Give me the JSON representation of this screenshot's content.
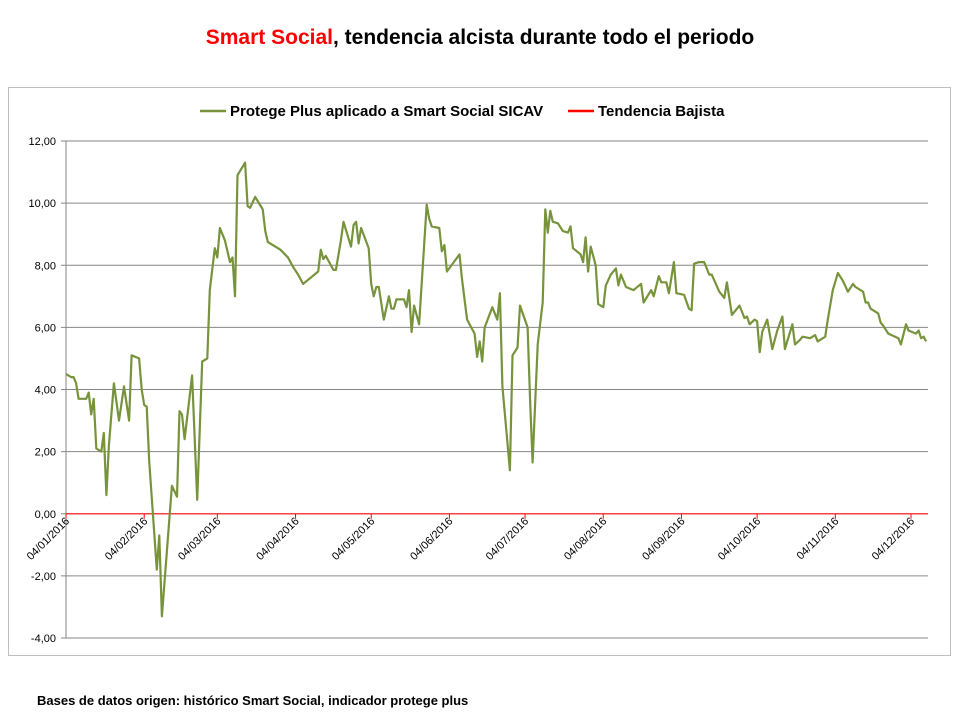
{
  "title": {
    "highlight": "Smart Social",
    "rest": ", tendencia alcista durante todo el periodo"
  },
  "footer": "Bases de datos origen: histórico Smart Social, indicador protege plus",
  "colors": {
    "series": "#77933c",
    "trend": "#ff0000",
    "grid": "#868686",
    "highlight": "#ff0000"
  },
  "chart_data": {
    "type": "line",
    "title": "Smart Social, tendencia alcista durante todo el periodo",
    "xlabel": "",
    "ylabel": "",
    "x_unit": "days since 04/01/2016",
    "ylim": [
      -4,
      12
    ],
    "xlim": [
      0,
      342
    ],
    "grid": true,
    "legend_position": "top",
    "y_ticks": [
      -4,
      -2,
      0,
      2,
      4,
      6,
      8,
      10,
      12
    ],
    "y_tick_labels": [
      "-4,00",
      "-2,00",
      "0,00",
      "2,00",
      "4,00",
      "6,00",
      "8,00",
      "10,00",
      "12,00"
    ],
    "x_ticks": [
      0,
      31,
      60,
      91,
      121,
      152,
      182,
      213,
      244,
      274,
      305,
      335
    ],
    "x_tick_labels": [
      "04/01/2016",
      "04/02/2016",
      "04/03/2016",
      "04/04/2016",
      "04/05/2016",
      "04/06/2016",
      "04/07/2016",
      "04/08/2016",
      "04/09/2016",
      "04/10/2016",
      "04/11/2016",
      "04/12/2016"
    ],
    "series": [
      {
        "name": "Protege Plus aplicado a Smart Social SICAV",
        "color": "#77933c",
        "points": [
          [
            0,
            4.5
          ],
          [
            2,
            4.4
          ],
          [
            3,
            4.4
          ],
          [
            4,
            4.2
          ],
          [
            5,
            3.7
          ],
          [
            8,
            3.7
          ],
          [
            9,
            3.9
          ],
          [
            10,
            3.2
          ],
          [
            11,
            3.7
          ],
          [
            12,
            2.1
          ],
          [
            14,
            2.0
          ],
          [
            15,
            2.6
          ],
          [
            16,
            0.6
          ],
          [
            17,
            2.2
          ],
          [
            19,
            4.2
          ],
          [
            21,
            3.0
          ],
          [
            23,
            4.1
          ],
          [
            25,
            3.0
          ],
          [
            26,
            5.1
          ],
          [
            29,
            5.0
          ],
          [
            30,
            4.0
          ],
          [
            31,
            3.5
          ],
          [
            32,
            3.45
          ],
          [
            33,
            1.7
          ],
          [
            36,
            -1.8
          ],
          [
            37,
            -0.7
          ],
          [
            38,
            -3.3
          ],
          [
            40,
            -1.2
          ],
          [
            42,
            0.9
          ],
          [
            44,
            0.55
          ],
          [
            45,
            3.3
          ],
          [
            46,
            3.2
          ],
          [
            47,
            2.4
          ],
          [
            50,
            4.45
          ],
          [
            52,
            0.45
          ],
          [
            54,
            4.9
          ],
          [
            56,
            5.0
          ],
          [
            57,
            7.2
          ],
          [
            59,
            8.55
          ],
          [
            60,
            8.25
          ],
          [
            61,
            9.2
          ],
          [
            63,
            8.8
          ],
          [
            65,
            8.1
          ],
          [
            66,
            8.25
          ],
          [
            67,
            7.0
          ],
          [
            68,
            10.9
          ],
          [
            71,
            11.3
          ],
          [
            72,
            9.9
          ],
          [
            73,
            9.85
          ],
          [
            75,
            10.2
          ],
          [
            78,
            9.8
          ],
          [
            79,
            9.1
          ],
          [
            80,
            8.75
          ],
          [
            85,
            8.5
          ],
          [
            88,
            8.25
          ],
          [
            90,
            7.95
          ],
          [
            92,
            7.7
          ],
          [
            94,
            7.4
          ],
          [
            97,
            7.6
          ],
          [
            100,
            7.8
          ],
          [
            101,
            8.5
          ],
          [
            102,
            8.2
          ],
          [
            103,
            8.3
          ],
          [
            106,
            7.85
          ],
          [
            107,
            7.85
          ],
          [
            109,
            8.8
          ],
          [
            110,
            9.4
          ],
          [
            113,
            8.6
          ],
          [
            114,
            9.3
          ],
          [
            115,
            9.4
          ],
          [
            116,
            8.7
          ],
          [
            117,
            9.2
          ],
          [
            120,
            8.55
          ],
          [
            121,
            7.4
          ],
          [
            122,
            7.0
          ],
          [
            123,
            7.3
          ],
          [
            124,
            7.3
          ],
          [
            126,
            6.25
          ],
          [
            128,
            7.0
          ],
          [
            129,
            6.6
          ],
          [
            130,
            6.6
          ],
          [
            131,
            6.9
          ],
          [
            134,
            6.9
          ],
          [
            135,
            6.65
          ],
          [
            136,
            7.2
          ],
          [
            137,
            5.85
          ],
          [
            138,
            6.7
          ],
          [
            140,
            6.1
          ],
          [
            143,
            9.95
          ],
          [
            144,
            9.5
          ],
          [
            145,
            9.25
          ],
          [
            148,
            9.2
          ],
          [
            149,
            8.45
          ],
          [
            150,
            8.65
          ],
          [
            151,
            7.8
          ],
          [
            156,
            8.35
          ],
          [
            157,
            7.55
          ],
          [
            159,
            6.25
          ],
          [
            162,
            5.8
          ],
          [
            163,
            5.05
          ],
          [
            164,
            5.55
          ],
          [
            165,
            4.9
          ],
          [
            166,
            6.0
          ],
          [
            169,
            6.65
          ],
          [
            171,
            6.25
          ],
          [
            172,
            7.1
          ],
          [
            173,
            4.1
          ],
          [
            176,
            1.4
          ],
          [
            177,
            5.1
          ],
          [
            179,
            5.35
          ],
          [
            180,
            6.7
          ],
          [
            183,
            6.0
          ],
          [
            184,
            3.65
          ],
          [
            185,
            1.65
          ],
          [
            187,
            5.45
          ],
          [
            189,
            6.8
          ],
          [
            190,
            9.8
          ],
          [
            191,
            9.05
          ],
          [
            192,
            9.75
          ],
          [
            193,
            9.4
          ],
          [
            195,
            9.35
          ],
          [
            197,
            9.1
          ],
          [
            199,
            9.05
          ],
          [
            200,
            9.25
          ],
          [
            201,
            8.55
          ],
          [
            204,
            8.35
          ],
          [
            205,
            8.1
          ],
          [
            206,
            8.9
          ],
          [
            207,
            7.8
          ],
          [
            208,
            8.6
          ],
          [
            210,
            8.0
          ],
          [
            211,
            6.75
          ],
          [
            213,
            6.65
          ],
          [
            214,
            7.35
          ],
          [
            216,
            7.7
          ],
          [
            218,
            7.9
          ],
          [
            219,
            7.35
          ],
          [
            220,
            7.7
          ],
          [
            222,
            7.3
          ],
          [
            225,
            7.2
          ],
          [
            228,
            7.4
          ],
          [
            229,
            6.8
          ],
          [
            232,
            7.2
          ],
          [
            233,
            7.0
          ],
          [
            235,
            7.65
          ],
          [
            236,
            7.45
          ],
          [
            238,
            7.45
          ],
          [
            239,
            7.1
          ],
          [
            241,
            8.1
          ],
          [
            242,
            7.1
          ],
          [
            245,
            7.05
          ],
          [
            247,
            6.6
          ],
          [
            248,
            6.55
          ],
          [
            249,
            8.05
          ],
          [
            251,
            8.1
          ],
          [
            253,
            8.1
          ],
          [
            255,
            7.7
          ],
          [
            256,
            7.7
          ],
          [
            259,
            7.15
          ],
          [
            261,
            6.95
          ],
          [
            262,
            7.45
          ],
          [
            264,
            6.4
          ],
          [
            267,
            6.7
          ],
          [
            269,
            6.3
          ],
          [
            270,
            6.35
          ],
          [
            271,
            6.1
          ],
          [
            273,
            6.25
          ],
          [
            274,
            6.2
          ],
          [
            275,
            5.2
          ],
          [
            276,
            5.85
          ],
          [
            278,
            6.25
          ],
          [
            280,
            5.3
          ],
          [
            282,
            5.9
          ],
          [
            284,
            6.35
          ],
          [
            285,
            5.3
          ],
          [
            288,
            6.1
          ],
          [
            289,
            5.45
          ],
          [
            291,
            5.6
          ],
          [
            292,
            5.7
          ],
          [
            295,
            5.65
          ],
          [
            297,
            5.75
          ],
          [
            298,
            5.55
          ],
          [
            301,
            5.7
          ],
          [
            302,
            6.25
          ],
          [
            304,
            7.2
          ],
          [
            306,
            7.75
          ],
          [
            308,
            7.5
          ],
          [
            310,
            7.15
          ],
          [
            312,
            7.4
          ],
          [
            313,
            7.3
          ],
          [
            316,
            7.15
          ],
          [
            317,
            6.8
          ],
          [
            318,
            6.8
          ],
          [
            319,
            6.6
          ],
          [
            322,
            6.45
          ],
          [
            323,
            6.15
          ],
          [
            324,
            6.05
          ],
          [
            326,
            5.8
          ],
          [
            330,
            5.65
          ],
          [
            331,
            5.45
          ],
          [
            333,
            6.1
          ],
          [
            334,
            5.9
          ],
          [
            337,
            5.8
          ],
          [
            338,
            5.9
          ],
          [
            339,
            5.65
          ],
          [
            340,
            5.7
          ],
          [
            341,
            5.55
          ]
        ]
      },
      {
        "name": "Tendencia Bajista",
        "color": "#ff0000",
        "points": [
          [
            0,
            0
          ],
          [
            342,
            0
          ]
        ]
      }
    ]
  }
}
